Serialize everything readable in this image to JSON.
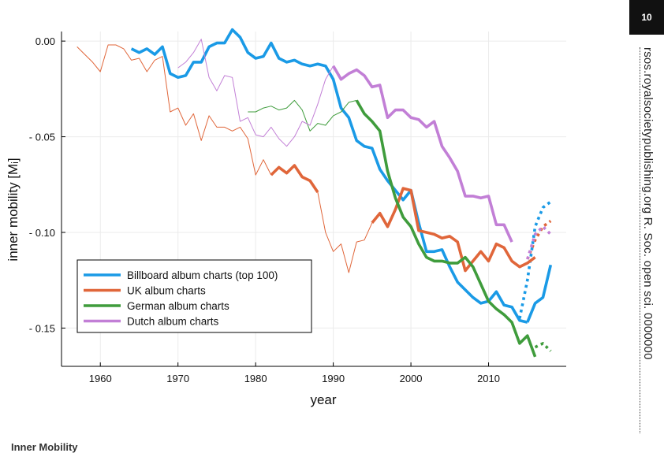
{
  "page": {
    "page_number": "10",
    "running_head": "rsos.royalsocietypublishing.org  R. Soc. open sci. 0000000",
    "footer_fragment": "Inner Mobility"
  },
  "chart_data": {
    "type": "line",
    "title": "",
    "xlabel": "year",
    "ylabel": "inner mobility [Mᵢ]",
    "xlim": [
      1955,
      2020
    ],
    "ylim": [
      -0.17,
      0.005
    ],
    "x_ticks": [
      1960,
      1970,
      1980,
      1990,
      2000,
      2010
    ],
    "x_tick_labels": [
      "1960",
      "1970",
      "1980",
      "1990",
      "2000",
      "2010"
    ],
    "y_ticks": [
      0.0,
      -0.05,
      -0.1,
      -0.15
    ],
    "y_tick_labels": [
      "0.00",
      "- 0.05",
      "- 0.10",
      "- 0.15"
    ],
    "grid": true,
    "legend_position": "bottom-left",
    "series": [
      {
        "name": "Billboard album charts (top 100)",
        "color": "#1a9ae6",
        "segments": [
          {
            "style": "thick",
            "x": [
              1964,
              1965,
              1966,
              1967,
              1968,
              1969,
              1970,
              1971,
              1972,
              1973,
              1974,
              1975,
              1976,
              1977,
              1978,
              1979,
              1980,
              1981,
              1982,
              1983,
              1984,
              1985,
              1986,
              1987,
              1988,
              1989,
              1990,
              1991,
              1992,
              1993,
              1994,
              1995,
              1996,
              1997,
              1998,
              1999,
              2000,
              2001,
              2002,
              2003,
              2004,
              2005,
              2006,
              2007,
              2008,
              2009,
              2010,
              2011,
              2012,
              2013,
              2014,
              2015
            ],
            "y": [
              -0.004,
              -0.006,
              -0.004,
              -0.007,
              -0.003,
              -0.017,
              -0.019,
              -0.018,
              -0.011,
              -0.011,
              -0.003,
              -0.001,
              -0.001,
              0.006,
              0.002,
              -0.006,
              -0.009,
              -0.008,
              -0.001,
              -0.009,
              -0.011,
              -0.01,
              -0.012,
              -0.013,
              -0.012,
              -0.013,
              -0.02,
              -0.035,
              -0.04,
              -0.052,
              -0.055,
              -0.056,
              -0.067,
              -0.073,
              -0.078,
              -0.083,
              -0.078,
              -0.095,
              -0.11,
              -0.11,
              -0.109,
              -0.118,
              -0.126,
              -0.13,
              -0.134,
              -0.137,
              -0.136,
              -0.131,
              -0.138,
              -0.139,
              -0.146,
              -0.147
            ]
          },
          {
            "style": "thick",
            "x": [
              2015,
              2016,
              2017,
              2018
            ],
            "y": [
              -0.147,
              -0.137,
              -0.134,
              -0.117
            ]
          },
          {
            "style": "dotted",
            "x": [
              2014,
              2015,
              2016,
              2017,
              2018
            ],
            "y": [
              -0.145,
              -0.125,
              -0.097,
              -0.087,
              -0.084
            ]
          }
        ]
      },
      {
        "name": "UK album charts",
        "color": "#e0663a",
        "segments": [
          {
            "style": "thin",
            "x": [
              1957,
              1958,
              1959,
              1960,
              1961,
              1962,
              1963,
              1964,
              1965,
              1966,
              1967,
              1968,
              1969,
              1970,
              1971,
              1972,
              1973,
              1974,
              1975,
              1976,
              1977,
              1978,
              1979,
              1980,
              1981,
              1982
            ],
            "y": [
              -0.003,
              -0.007,
              -0.011,
              -0.016,
              -0.002,
              -0.002,
              -0.004,
              -0.01,
              -0.009,
              -0.016,
              -0.01,
              -0.008,
              -0.037,
              -0.035,
              -0.044,
              -0.038,
              -0.052,
              -0.039,
              -0.045,
              -0.045,
              -0.047,
              -0.045,
              -0.051,
              -0.07,
              -0.062,
              -0.07
            ]
          },
          {
            "style": "thick",
            "x": [
              1982,
              1983,
              1984,
              1985,
              1986,
              1987,
              1988
            ],
            "y": [
              -0.07,
              -0.066,
              -0.069,
              -0.065,
              -0.071,
              -0.073,
              -0.079
            ]
          },
          {
            "style": "thin",
            "x": [
              1988,
              1989,
              1990,
              1991,
              1992,
              1993,
              1994,
              1995
            ],
            "y": [
              -0.079,
              -0.1,
              -0.11,
              -0.106,
              -0.121,
              -0.105,
              -0.104,
              -0.095
            ]
          },
          {
            "style": "thick",
            "x": [
              1995,
              1996,
              1997,
              1998,
              1999,
              2000,
              2001,
              2002,
              2003,
              2004,
              2005,
              2006,
              2007,
              2008,
              2009,
              2010,
              2011,
              2012,
              2013,
              2014,
              2015,
              2016
            ],
            "y": [
              -0.095,
              -0.09,
              -0.097,
              -0.088,
              -0.077,
              -0.078,
              -0.099,
              -0.1,
              -0.101,
              -0.103,
              -0.102,
              -0.105,
              -0.12,
              -0.115,
              -0.11,
              -0.115,
              -0.106,
              -0.108,
              -0.115,
              -0.118,
              -0.116,
              -0.113
            ]
          },
          {
            "style": "dotted",
            "x": [
              2015,
              2016,
              2017,
              2018
            ],
            "y": [
              -0.114,
              -0.104,
              -0.097,
              -0.094
            ]
          }
        ]
      },
      {
        "name": "German album charts",
        "color": "#3f9c3c",
        "segments": [
          {
            "style": "thin",
            "x": [
              1979,
              1980,
              1981,
              1982,
              1983,
              1984,
              1985,
              1986,
              1987,
              1988,
              1989,
              1990,
              1991,
              1992,
              1993
            ],
            "y": [
              -0.037,
              -0.037,
              -0.035,
              -0.034,
              -0.036,
              -0.035,
              -0.031,
              -0.036,
              -0.047,
              -0.043,
              -0.044,
              -0.039,
              -0.037,
              -0.032,
              -0.031
            ]
          },
          {
            "style": "thick",
            "x": [
              1993,
              1994,
              1995,
              1996,
              1997,
              1998,
              1999,
              2000,
              2001,
              2002,
              2003,
              2004,
              2005,
              2006,
              2007,
              2008,
              2009,
              2010,
              2011,
              2012,
              2013,
              2014,
              2015,
              2016
            ],
            "y": [
              -0.031,
              -0.038,
              -0.042,
              -0.047,
              -0.068,
              -0.082,
              -0.092,
              -0.097,
              -0.106,
              -0.113,
              -0.115,
              -0.115,
              -0.116,
              -0.116,
              -0.113,
              -0.118,
              -0.127,
              -0.136,
              -0.14,
              -0.143,
              -0.147,
              -0.158,
              -0.154,
              -0.165
            ]
          },
          {
            "style": "dotted",
            "x": [
              2016,
              2017,
              2018
            ],
            "y": [
              -0.16,
              -0.158,
              -0.162
            ]
          }
        ]
      },
      {
        "name": "Dutch album charts",
        "color": "#c27fd6",
        "segments": [
          {
            "style": "thin",
            "x": [
              1970,
              1971,
              1972,
              1973,
              1974,
              1975,
              1976,
              1977,
              1978,
              1979,
              1980,
              1981,
              1982,
              1983,
              1984,
              1985,
              1986,
              1987,
              1988,
              1989,
              1990
            ],
            "y": [
              -0.014,
              -0.011,
              -0.006,
              0.001,
              -0.019,
              -0.026,
              -0.018,
              -0.019,
              -0.042,
              -0.04,
              -0.049,
              -0.05,
              -0.045,
              -0.051,
              -0.055,
              -0.05,
              -0.042,
              -0.044,
              -0.033,
              -0.02,
              -0.013
            ]
          },
          {
            "style": "thick",
            "x": [
              1990,
              1991,
              1992,
              1993,
              1994,
              1995,
              1996,
              1997,
              1998,
              1999,
              2000,
              2001,
              2002,
              2003,
              2004,
              2005,
              2006,
              2007,
              2008,
              2009,
              2010,
              2011,
              2012,
              2013
            ],
            "y": [
              -0.013,
              -0.02,
              -0.017,
              -0.015,
              -0.018,
              -0.024,
              -0.023,
              -0.04,
              -0.036,
              -0.036,
              -0.04,
              -0.041,
              -0.045,
              -0.042,
              -0.055,
              -0.061,
              -0.068,
              -0.081,
              -0.081,
              -0.082,
              -0.081,
              -0.096,
              -0.096,
              -0.105
            ]
          },
          {
            "style": "dotted",
            "x": [
              2015,
              2016,
              2017,
              2018
            ],
            "y": [
              -0.114,
              -0.101,
              -0.097,
              -0.101
            ]
          }
        ]
      }
    ]
  }
}
